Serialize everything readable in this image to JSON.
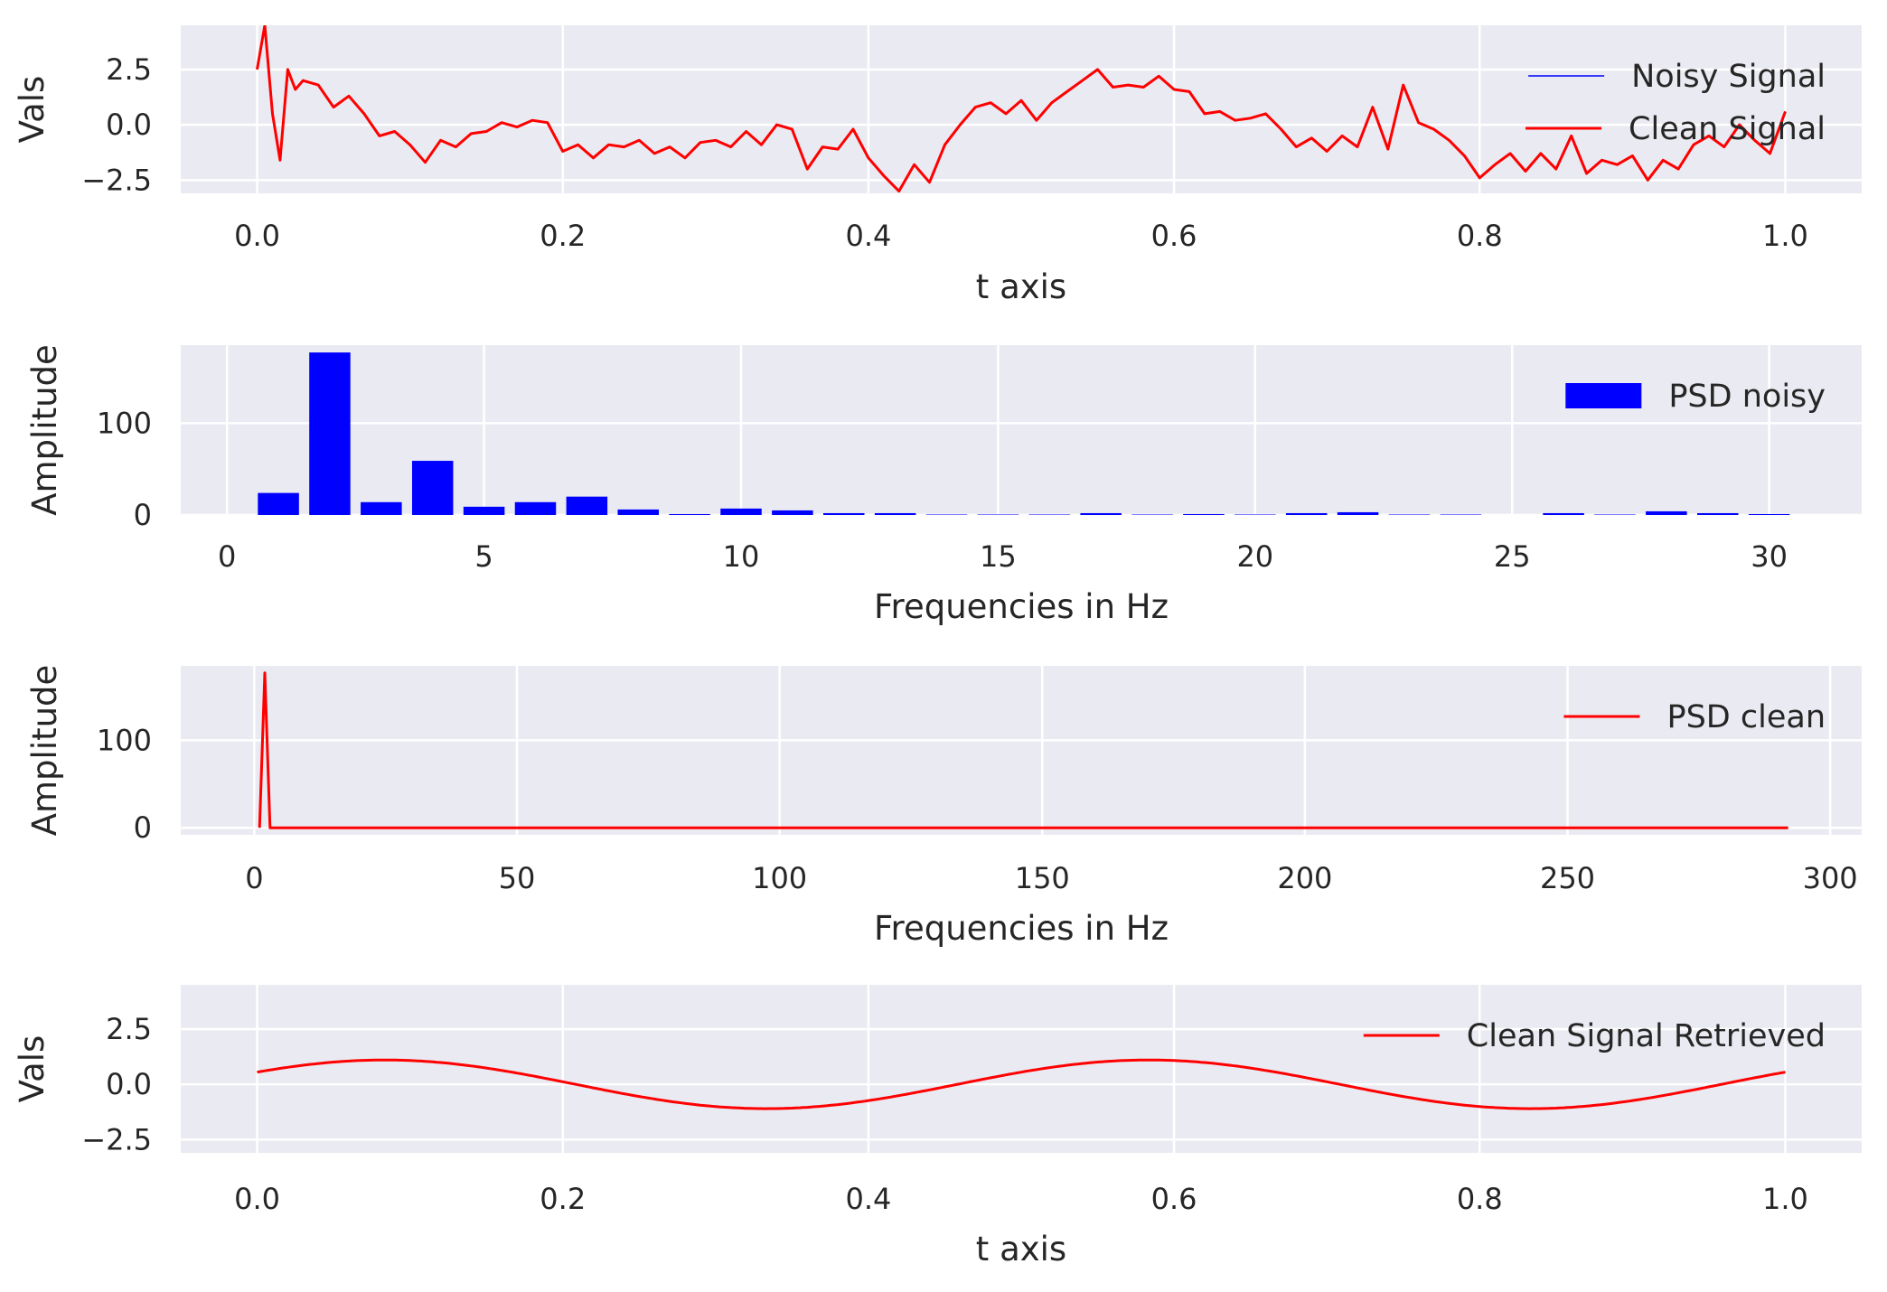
{
  "colors": {
    "axes_bg": "#eaeaf2",
    "grid": "#ffffff",
    "text": "#262626",
    "red": "#ff0000",
    "blue": "#0000ff"
  },
  "chart_data": [
    {
      "type": "line",
      "xlabel": "t axis",
      "ylabel": "Vals",
      "xlim": [
        -0.05,
        1.05
      ],
      "ylim": [
        -3.1,
        4.5
      ],
      "xticks": [
        0.0,
        0.2,
        0.4,
        0.6,
        0.8,
        1.0
      ],
      "xtick_labels": [
        "0.0",
        "0.2",
        "0.4",
        "0.6",
        "0.8",
        "1.0"
      ],
      "yticks": [
        -2.5,
        0.0,
        2.5
      ],
      "ytick_labels": [
        "−2.5",
        "0.0",
        "2.5"
      ],
      "grid": true,
      "legend": "right",
      "series": [
        {
          "name": "Noisy Signal",
          "color": "#0000ff",
          "x": [],
          "y": []
        },
        {
          "name": "Clean Signal",
          "color": "#ff0000",
          "x": [
            0.0,
            0.005,
            0.01,
            0.015,
            0.02,
            0.025,
            0.03,
            0.04,
            0.05,
            0.06,
            0.07,
            0.08,
            0.09,
            0.1,
            0.11,
            0.12,
            0.13,
            0.14,
            0.15,
            0.16,
            0.17,
            0.18,
            0.19,
            0.2,
            0.21,
            0.22,
            0.23,
            0.24,
            0.25,
            0.26,
            0.27,
            0.28,
            0.29,
            0.3,
            0.31,
            0.32,
            0.33,
            0.34,
            0.35,
            0.36,
            0.37,
            0.38,
            0.39,
            0.4,
            0.41,
            0.42,
            0.43,
            0.44,
            0.45,
            0.46,
            0.47,
            0.48,
            0.49,
            0.5,
            0.51,
            0.52,
            0.53,
            0.54,
            0.55,
            0.56,
            0.57,
            0.58,
            0.59,
            0.6,
            0.61,
            0.62,
            0.63,
            0.64,
            0.65,
            0.66,
            0.67,
            0.68,
            0.69,
            0.7,
            0.71,
            0.72,
            0.73,
            0.74,
            0.75,
            0.76,
            0.77,
            0.78,
            0.79,
            0.8,
            0.81,
            0.82,
            0.83,
            0.84,
            0.85,
            0.86,
            0.87,
            0.88,
            0.89,
            0.9,
            0.91,
            0.92,
            0.93,
            0.94,
            0.95,
            0.96,
            0.97,
            0.98,
            0.99,
            1.0
          ],
          "y": [
            2.5,
            4.5,
            0.5,
            -1.6,
            2.5,
            1.6,
            2.0,
            1.8,
            0.8,
            1.3,
            0.5,
            -0.5,
            -0.3,
            -0.9,
            -1.7,
            -0.7,
            -1.0,
            -0.4,
            -0.3,
            0.1,
            -0.1,
            0.2,
            0.1,
            -1.2,
            -0.9,
            -1.5,
            -0.9,
            -1.0,
            -0.7,
            -1.3,
            -1.0,
            -1.5,
            -0.8,
            -0.7,
            -1.0,
            -0.3,
            -0.9,
            0.0,
            -0.2,
            -2.0,
            -1.0,
            -1.1,
            -0.2,
            -1.5,
            -2.3,
            -3.0,
            -1.8,
            -2.6,
            -0.9,
            0.0,
            0.8,
            1.0,
            0.5,
            1.1,
            0.2,
            1.0,
            1.5,
            2.0,
            2.5,
            1.7,
            1.8,
            1.7,
            2.2,
            1.6,
            1.5,
            0.5,
            0.6,
            0.2,
            0.3,
            0.5,
            -0.2,
            -1.0,
            -0.6,
            -1.2,
            -0.5,
            -1.0,
            0.8,
            -1.1,
            1.8,
            0.1,
            -0.2,
            -0.7,
            -1.4,
            -2.4,
            -1.8,
            -1.3,
            -2.1,
            -1.3,
            -2.0,
            -0.5,
            -2.2,
            -1.6,
            -1.8,
            -1.4,
            -2.5,
            -1.6,
            -2.0,
            -0.9,
            -0.5,
            -1.0,
            0.0,
            -0.7,
            -1.3,
            0.6
          ]
        }
      ]
    },
    {
      "type": "bar",
      "xlabel": "Frequencies in Hz",
      "ylabel": "Amplitude",
      "xlim": [
        -0.9,
        31.8
      ],
      "ylim": [
        0,
        185
      ],
      "xticks": [
        0,
        5,
        10,
        15,
        20,
        25,
        30
      ],
      "xtick_labels": [
        "0",
        "5",
        "10",
        "15",
        "20",
        "25",
        "30"
      ],
      "yticks": [
        0,
        100
      ],
      "ytick_labels": [
        "0",
        "100"
      ],
      "grid": true,
      "legend": "right",
      "series": [
        {
          "name": "PSD noisy",
          "color": "#0000ff",
          "x": [
            1,
            2,
            3,
            4,
            5,
            6,
            7,
            8,
            9,
            10,
            11,
            12,
            13,
            14,
            15,
            16,
            17,
            18,
            19,
            20,
            21,
            22,
            23,
            24,
            26,
            27,
            28,
            29,
            30
          ],
          "values": [
            24,
            177,
            14,
            59,
            9,
            14,
            20,
            6,
            1,
            7,
            5,
            2,
            2,
            0.5,
            0.5,
            0.5,
            2,
            0.5,
            1,
            0.5,
            2,
            3,
            0.5,
            0.5,
            2,
            0.5,
            4,
            2,
            1
          ]
        }
      ]
    },
    {
      "type": "line",
      "xlabel": "Frequencies in Hz",
      "ylabel": "Amplitude",
      "xlim": [
        -14,
        306
      ],
      "ylim": [
        -8,
        185
      ],
      "xticks": [
        0,
        50,
        100,
        150,
        200,
        250,
        300
      ],
      "xtick_labels": [
        "0",
        "50",
        "100",
        "150",
        "200",
        "250",
        "300"
      ],
      "yticks": [
        0,
        100
      ],
      "ytick_labels": [
        "0",
        "100"
      ],
      "grid": true,
      "legend": "right",
      "series": [
        {
          "name": "PSD clean",
          "color": "#ff0000",
          "x": [
            1,
            2,
            3,
            4,
            292
          ],
          "y": [
            0,
            177,
            0,
            0,
            0
          ]
        }
      ]
    },
    {
      "type": "line",
      "xlabel": "t axis",
      "ylabel": "Vals",
      "xlim": [
        -0.05,
        1.05
      ],
      "ylim": [
        -3.1,
        4.5
      ],
      "xticks": [
        0.0,
        0.2,
        0.4,
        0.6,
        0.8,
        1.0
      ],
      "xtick_labels": [
        "0.0",
        "0.2",
        "0.4",
        "0.6",
        "0.8",
        "1.0"
      ],
      "yticks": [
        -2.5,
        0.0,
        2.5
      ],
      "ytick_labels": [
        "−2.5",
        "0.0",
        "2.5"
      ],
      "grid": true,
      "legend": "right",
      "series": [
        {
          "name": "Clean Signal Retrieved",
          "color": "#ff0000",
          "function": {
            "kind": "sine",
            "amplitude": 1.1,
            "frequency": 2,
            "phase_deg": 30
          }
        }
      ]
    }
  ]
}
